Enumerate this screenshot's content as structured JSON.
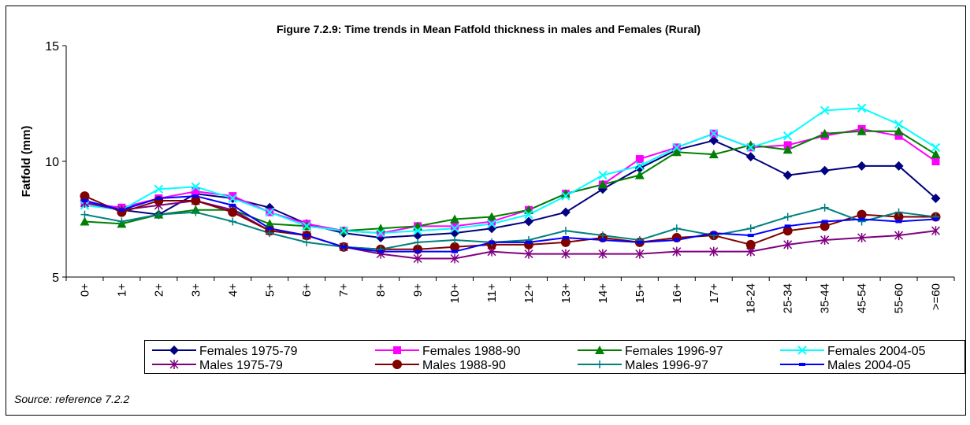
{
  "chart_data": {
    "type": "line",
    "title": "Figure 7.2.9: Time trends  in Mean Fatfold thickness in males and Females (Rural)",
    "y_label": "Fatfold (mm)",
    "source": "Source: reference 7.2.2",
    "categories": [
      "0+",
      "1+",
      "2+",
      "3+",
      "4+",
      "5+",
      "6+",
      "7+",
      "8+",
      "9+",
      "10+",
      "11+",
      "12+",
      "13+",
      "14+",
      "15+",
      "16+",
      "17+",
      "18-24",
      "25-34",
      "35-44",
      "45-54",
      "55-60",
      ">=60"
    ],
    "ylim": [
      5,
      15
    ],
    "yticks": [
      5,
      10,
      15
    ],
    "grid": false,
    "series": [
      {
        "name": "Females 1975-79",
        "color": "#000080",
        "marker": "diamond",
        "values": [
          8.3,
          7.9,
          7.7,
          8.6,
          8.4,
          8.0,
          7.3,
          6.9,
          6.7,
          6.8,
          6.9,
          7.1,
          7.4,
          7.8,
          8.8,
          9.7,
          10.5,
          10.9,
          10.2,
          9.4,
          9.6,
          9.8,
          9.8,
          8.4
        ]
      },
      {
        "name": "Females 1988-90",
        "color": "#ff00ff",
        "marker": "square",
        "values": [
          8.2,
          8.0,
          8.4,
          8.7,
          8.5,
          7.8,
          7.3,
          7.0,
          6.9,
          7.2,
          7.2,
          7.4,
          7.9,
          8.6,
          9.0,
          10.1,
          10.6,
          11.2,
          10.6,
          10.7,
          11.1,
          11.4,
          11.1,
          10.0
        ]
      },
      {
        "name": "Females 1996-97",
        "color": "#008000",
        "marker": "triangle",
        "values": [
          7.4,
          7.3,
          7.7,
          7.9,
          7.9,
          7.3,
          7.2,
          7.0,
          7.1,
          7.2,
          7.5,
          7.6,
          7.9,
          8.6,
          9.0,
          9.4,
          10.4,
          10.3,
          10.7,
          10.5,
          11.2,
          11.3,
          11.3,
          10.3
        ]
      },
      {
        "name": "Females 2004-05",
        "color": "#00ffff",
        "marker": "x",
        "values": [
          8.1,
          7.9,
          8.8,
          8.9,
          8.4,
          7.8,
          7.2,
          7.0,
          6.9,
          7.0,
          7.1,
          7.3,
          7.7,
          8.5,
          9.4,
          9.8,
          10.6,
          11.2,
          10.6,
          11.1,
          12.2,
          12.3,
          11.6,
          10.6
        ]
      },
      {
        "name": "Males 1975-79",
        "color": "#800080",
        "marker": "asterisk",
        "values": [
          8.2,
          7.9,
          8.1,
          8.3,
          7.9,
          7.0,
          6.8,
          6.3,
          6.0,
          5.8,
          5.8,
          6.1,
          6.0,
          6.0,
          6.0,
          6.0,
          6.1,
          6.1,
          6.1,
          6.4,
          6.6,
          6.7,
          6.8,
          7.0
        ]
      },
      {
        "name": "Males 1988-90",
        "color": "#800000",
        "marker": "circle",
        "values": [
          8.5,
          7.8,
          8.3,
          8.3,
          7.8,
          7.0,
          6.8,
          6.3,
          6.2,
          6.2,
          6.3,
          6.4,
          6.4,
          6.5,
          6.7,
          6.5,
          6.7,
          6.8,
          6.4,
          7.0,
          7.2,
          7.7,
          7.6,
          7.6
        ]
      },
      {
        "name": "Males 1996-97",
        "color": "#008080",
        "marker": "plus",
        "values": [
          7.7,
          7.4,
          7.7,
          7.8,
          7.4,
          6.9,
          6.5,
          6.3,
          6.2,
          6.5,
          6.6,
          6.5,
          6.6,
          7.0,
          6.8,
          6.6,
          7.1,
          6.8,
          7.1,
          7.6,
          8.0,
          7.4,
          7.8,
          7.6
        ]
      },
      {
        "name": "Males 2004-05",
        "color": "#0000ff",
        "marker": "dash",
        "values": [
          8.3,
          7.9,
          8.4,
          8.5,
          8.1,
          7.1,
          6.8,
          6.3,
          6.1,
          6.1,
          6.1,
          6.5,
          6.5,
          6.7,
          6.6,
          6.5,
          6.6,
          6.9,
          6.8,
          7.2,
          7.4,
          7.5,
          7.4,
          7.5
        ]
      }
    ]
  }
}
